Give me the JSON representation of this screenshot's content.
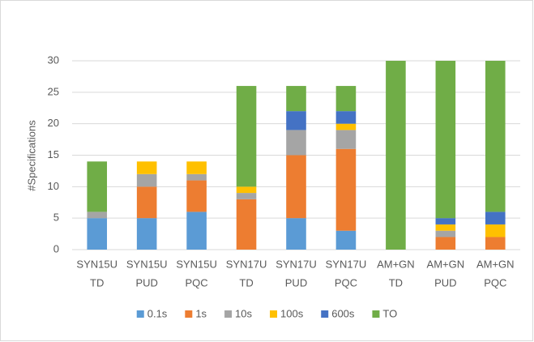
{
  "chart_data": {
    "type": "stacked_bar",
    "y_label": "#Specifications",
    "categories": [
      [
        "SYN15U",
        "TD"
      ],
      [
        "SYN15U",
        "PUD"
      ],
      [
        "SYN15U",
        "PQC"
      ],
      [
        "SYN17U",
        "TD"
      ],
      [
        "SYN17U",
        "PUD"
      ],
      [
        "SYN17U",
        "PQC"
      ],
      [
        "AM+GN",
        "TD"
      ],
      [
        "AM+GN",
        "PUD"
      ],
      [
        "AM+GN",
        "PQC"
      ]
    ],
    "series": [
      {
        "name": "0.1s",
        "color": "#5b9bd5",
        "values": [
          5,
          5,
          6,
          0,
          5,
          3,
          0,
          0,
          0
        ]
      },
      {
        "name": "1s",
        "color": "#ed7d31",
        "values": [
          0,
          5,
          5,
          8,
          10,
          13,
          0,
          2,
          2
        ]
      },
      {
        "name": "10s",
        "color": "#a5a5a5",
        "values": [
          1,
          2,
          1,
          1,
          4,
          3,
          0,
          1,
          0
        ]
      },
      {
        "name": "100s",
        "color": "#ffc000",
        "values": [
          0,
          2,
          2,
          1,
          0,
          1,
          0,
          1,
          2
        ]
      },
      {
        "name": "600s",
        "color": "#4472c4",
        "values": [
          0,
          0,
          0,
          0,
          3,
          2,
          0,
          1,
          2
        ]
      },
      {
        "name": "TO",
        "color": "#70ad47",
        "values": [
          8,
          0,
          0,
          16,
          4,
          4,
          30,
          25,
          24
        ]
      }
    ],
    "ylim": [
      0,
      30
    ],
    "yticks": [
      0,
      5,
      10,
      15,
      20,
      25,
      30
    ],
    "grid": true,
    "legend": "bottom"
  }
}
